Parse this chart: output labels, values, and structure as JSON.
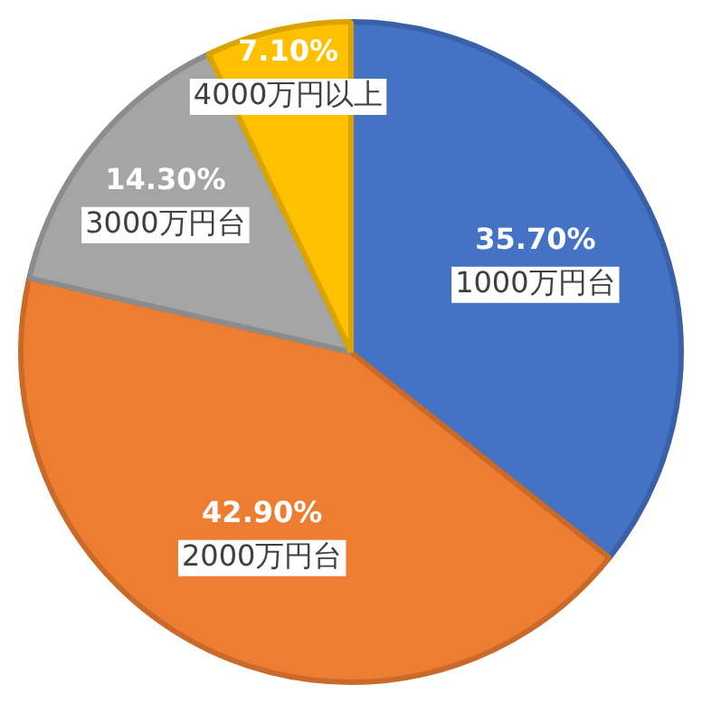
{
  "chart_data": {
    "type": "pie",
    "categories": [
      "1000万円台",
      "2000万円台",
      "3000万円台",
      "4000万円以上"
    ],
    "values": [
      35.7,
      42.9,
      14.3,
      7.1
    ],
    "value_labels": [
      "35.70%",
      "42.90%",
      "14.30%",
      "7.10%"
    ],
    "colors": [
      "#4472c4",
      "#ed7d31",
      "#a5a5a5",
      "#ffc000"
    ],
    "legend": false
  }
}
